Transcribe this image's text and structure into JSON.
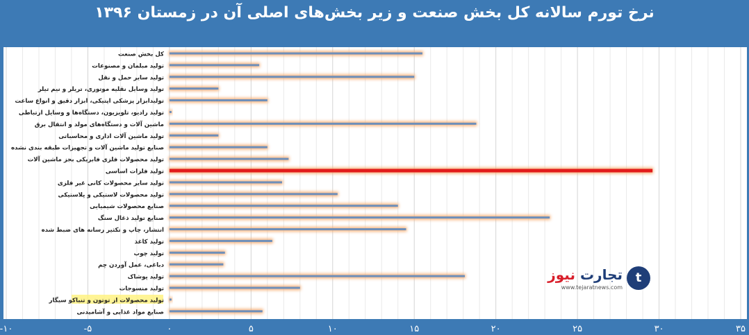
{
  "title": "نرخ تورم سالانه کل بخش صنعت و زیر بخش‌های اصلی آن در زمستان ۱۳۹۶",
  "logo": {
    "name_part1": "تجارت",
    "name_part2": "نیوز",
    "url": "www.tejaratnews.com",
    "mark": "t"
  },
  "colors": {
    "background": "#3d7ab5",
    "bar": "#6e8fba",
    "highlight_bar": "#e21b1b",
    "glow": "#f5a96b",
    "label_highlight": "#fff17a"
  },
  "chart_data": {
    "type": "bar",
    "orientation": "horizontal",
    "xlim": [
      -10,
      35
    ],
    "x_ticks": [
      -10,
      -5,
      0,
      5,
      10,
      15,
      20,
      25,
      30,
      35
    ],
    "x_tick_labels": [
      "-۱۰",
      "-۵",
      "۰",
      "۵",
      "۱۰",
      "۱۵",
      "۲۰",
      "۲۵",
      "۳۰",
      "۳۵"
    ],
    "grid": true,
    "categories": [
      "کل بخش صنعت",
      "تولید مبلمان و مصنوعات",
      "تولید سایر حمل و نقل",
      "تولید وسایل نقلیه موتوری، تریلر و نیم تیلر",
      "تولیدابزار پزشکی اپتیکی، ابزار دقیق و انواع ساعت",
      "تولید رادیو، تلویزیون، دستگاه‌ها و وسایل ارتباطی",
      "ماشین آلات و دستگاه‌های مولد و انتقال برق",
      "تولید ماشین آلات اداری و محاسباتی",
      "صنایع تولید ماشین آلات  و تجهیزات طبقه بندی نشده",
      "تولید محصولات فلزی فابریکی بجز ماشین آلات",
      "تولید فلزات اساسی",
      "تولید سایر محصولات کانی غیر فلزی",
      "تولید محصولات لاستیکی و پلاستیکی",
      "صنایع محصولات شیمیایی",
      "صنایع تولید ذغال سنگ",
      "انتشار، چاپ و تکثیر رسانه های ضبط شده",
      "تولید کاغذ",
      "تولید چوب",
      "دباغی، عمل آوردن چم",
      "تولید پوشاک",
      "تولید منسوجات",
      "تولید محصولات از توتون و تنباکو سیگار",
      "صنایع مواد غذایی و آشامیدنی"
    ],
    "values": [
      15.5,
      5.5,
      15.0,
      3.0,
      6.0,
      0.0,
      18.8,
      3.0,
      6.0,
      7.3,
      29.6,
      6.9,
      10.3,
      14.0,
      23.3,
      14.5,
      6.3,
      3.4,
      3.3,
      18.1,
      8.0,
      0.0,
      5.7
    ],
    "highlight_index": 10,
    "label_highlight_index": 21
  }
}
